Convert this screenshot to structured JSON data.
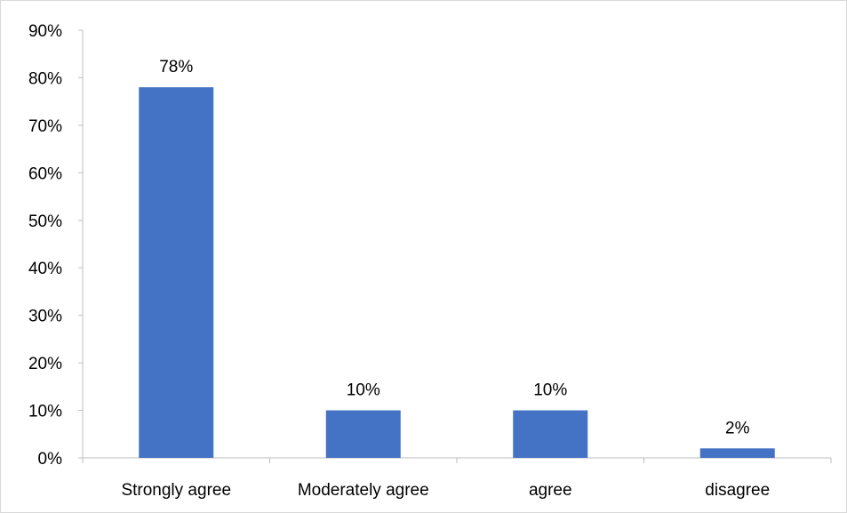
{
  "chart_data": {
    "type": "bar",
    "categories": [
      "Strongly agree",
      "Moderately agree",
      "agree",
      "disagree"
    ],
    "values": [
      78,
      10,
      10,
      2
    ],
    "data_labels": [
      "78%",
      "10%",
      "10%",
      "2%"
    ],
    "title": "",
    "xlabel": "",
    "ylabel": "",
    "ylim": [
      0,
      90
    ],
    "y_ticks": [
      0,
      10,
      20,
      30,
      40,
      50,
      60,
      70,
      80,
      90
    ],
    "y_tick_labels": [
      "0%",
      "10%",
      "20%",
      "30%",
      "40%",
      "50%",
      "60%",
      "70%",
      "80%",
      "90%"
    ],
    "grid": false,
    "legend": "none",
    "bar_color": "#4472c4"
  }
}
